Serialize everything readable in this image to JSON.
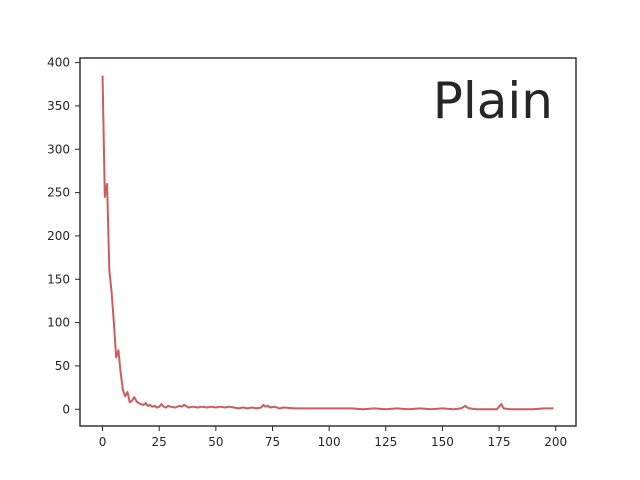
{
  "chart_data": {
    "type": "line",
    "annotation": "Plain",
    "xlim": [
      -9.95,
      208.95
    ],
    "ylim": [
      -19.3,
      405.3
    ],
    "x_ticks": [
      "0",
      "25",
      "50",
      "75",
      "100",
      "125",
      "150",
      "175",
      "200"
    ],
    "y_ticks": [
      "0",
      "50",
      "100",
      "150",
      "200",
      "250",
      "300",
      "350",
      "400"
    ],
    "grid": false,
    "line_color": "#cd5c5c",
    "series": [
      {
        "x": [
          0,
          1,
          2,
          3,
          4,
          5,
          6,
          7,
          8,
          9,
          10,
          11,
          12,
          13,
          14,
          15,
          16,
          17,
          18,
          19,
          20,
          21,
          22,
          23,
          24,
          25,
          26,
          27,
          28,
          29,
          30,
          32,
          34,
          35,
          36,
          38,
          40,
          42,
          44,
          46,
          48,
          50,
          52,
          54,
          56,
          58,
          60,
          62,
          64,
          66,
          68,
          70,
          71,
          72,
          73,
          74,
          76,
          78,
          80,
          85,
          90,
          95,
          100,
          105,
          110,
          115,
          120,
          125,
          130,
          135,
          140,
          145,
          150,
          155,
          158,
          159,
          160,
          161,
          162,
          165,
          170,
          174,
          175,
          176,
          177,
          180,
          185,
          190,
          195,
          199
        ],
        "y": [
          385,
          245,
          260,
          160,
          135,
          100,
          60,
          68,
          42,
          22,
          15,
          20,
          8,
          10,
          14,
          9,
          7,
          6,
          5,
          7,
          4,
          5,
          3,
          4,
          2,
          3,
          6,
          3,
          2,
          4,
          3,
          2,
          4,
          3,
          5,
          2,
          3,
          2,
          3,
          2,
          3,
          2,
          3,
          2,
          3,
          2,
          1,
          2,
          1,
          2,
          1,
          2,
          5,
          3,
          4,
          2,
          3,
          1,
          2,
          1,
          1,
          1,
          1,
          1,
          1,
          0,
          1,
          0,
          1,
          0,
          1,
          0,
          1,
          0,
          1,
          2,
          4,
          2,
          1,
          0,
          0,
          0,
          3,
          6,
          1,
          0,
          0,
          0,
          1,
          1
        ]
      }
    ]
  }
}
